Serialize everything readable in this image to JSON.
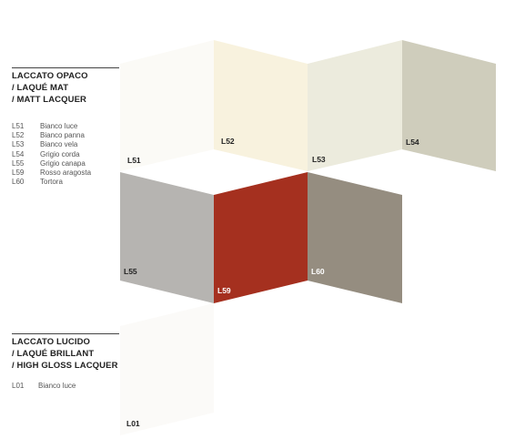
{
  "matt": {
    "title_lines": [
      "LACCATO OPACO",
      "/ LAQUÉ MAT",
      "/ MATT LACQUER"
    ],
    "items": [
      {
        "code": "L51",
        "name": "Bianco luce"
      },
      {
        "code": "L52",
        "name": "Bianco panna"
      },
      {
        "code": "L53",
        "name": "Bianco vela"
      },
      {
        "code": "L54",
        "name": "Grigio corda"
      },
      {
        "code": "L55",
        "name": "Grigio canapa"
      },
      {
        "code": "L59",
        "name": "Rosso aragosta"
      },
      {
        "code": "L60",
        "name": "Tortora"
      }
    ]
  },
  "gloss": {
    "title_lines": [
      "LACCATO LUCIDO",
      "/ LAQUÉ BRILLANT",
      "/ HIGH GLOSS LACQUER"
    ],
    "items": [
      {
        "code": "L01",
        "name": "Bianco luce"
      }
    ]
  },
  "swatches": [
    {
      "code": "L51",
      "color": "#fbfaf6",
      "label_color": "#222222"
    },
    {
      "code": "L52",
      "color": "#f8f2de",
      "label_color": "#222222"
    },
    {
      "code": "L53",
      "color": "#ecebdd",
      "label_color": "#222222"
    },
    {
      "code": "L54",
      "color": "#cfcdbc",
      "label_color": "#222222"
    },
    {
      "code": "L55",
      "color": "#b6b4b1",
      "label_color": "#222222"
    },
    {
      "code": "L59",
      "color": "#a5301f",
      "label_color": "#ffffff"
    },
    {
      "code": "L60",
      "color": "#958d80",
      "label_color": "#ffffff"
    },
    {
      "code": "L01",
      "color": "#fbfaf8",
      "label_color": "#222222"
    }
  ]
}
